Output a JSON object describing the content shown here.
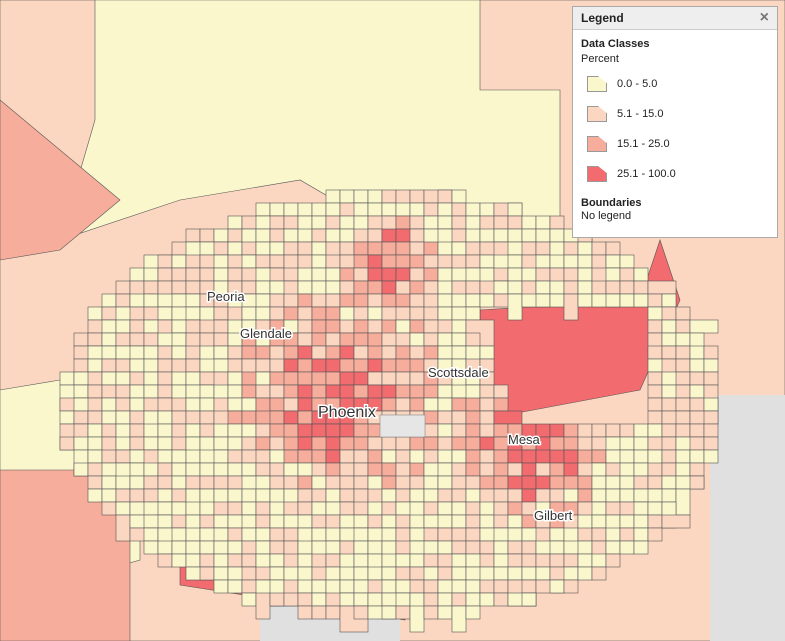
{
  "legend": {
    "title": "Legend",
    "close": "×",
    "sections": [
      {
        "title": "Data Classes",
        "subtitle": "Percent",
        "classes": [
          {
            "label": "0.0 - 5.0",
            "color": "#faf7cc"
          },
          {
            "label": "5.1 - 15.0",
            "color": "#fbd6c0"
          },
          {
            "label": "15.1 - 25.0",
            "color": "#f7ad9c"
          },
          {
            "label": "25.1 - 100.0",
            "color": "#f16b6f"
          }
        ]
      },
      {
        "title": "Boundaries",
        "subtitle": "No legend"
      }
    ]
  },
  "map": {
    "labels": [
      {
        "text": "Peoria"
      },
      {
        "text": "Glendale"
      },
      {
        "text": "Phoenix"
      },
      {
        "text": "Scottsdale"
      },
      {
        "text": "Mesa"
      },
      {
        "text": "Gilbert"
      }
    ]
  }
}
